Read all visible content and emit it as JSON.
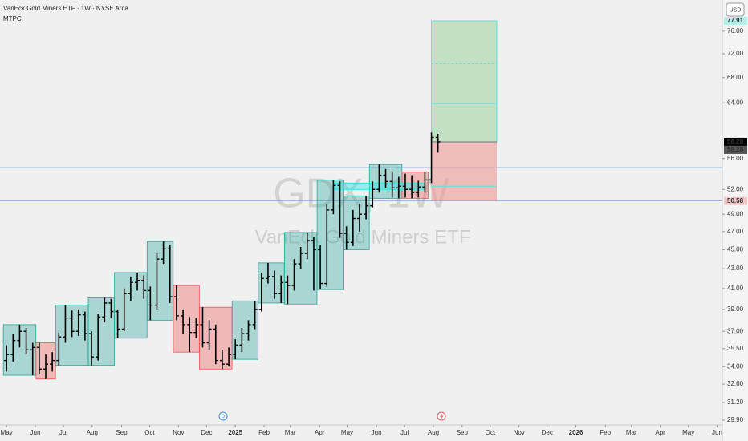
{
  "chart_data": {
    "type": "ohlc",
    "title": "VanEck Gold Miners ETF · 1W · NYSE Arca",
    "subtitle": "MTPC",
    "currency": "USD",
    "watermark": "GDX, 1W",
    "watermark_subtitle": "VanEck Gold Miners ETF",
    "log_scale": true,
    "bar_color": "#000000",
    "ylim": [
      29.56,
      81.9
    ],
    "yticks": [
      {
        "value": 76,
        "label": "76.00"
      },
      {
        "value": 72,
        "label": "72.00"
      },
      {
        "value": 68,
        "label": "68.00"
      },
      {
        "value": 64,
        "label": "64.00"
      },
      {
        "value": 56,
        "label": "56.00"
      },
      {
        "value": 52,
        "label": "52.00"
      },
      {
        "value": 49,
        "label": "49.00"
      },
      {
        "value": 47,
        "label": "47.00"
      },
      {
        "value": 45,
        "label": "45.00"
      },
      {
        "value": 43,
        "label": "43.00"
      },
      {
        "value": 41,
        "label": "41.00"
      },
      {
        "value": 39,
        "label": "39.00"
      },
      {
        "value": 37,
        "label": "37.00"
      },
      {
        "value": 35.5,
        "label": "35.50"
      },
      {
        "value": 34,
        "label": "34.00"
      },
      {
        "value": 32.6,
        "label": "32.60"
      },
      {
        "value": 31.2,
        "label": "31.20"
      },
      {
        "value": 29.9,
        "label": "29.90"
      }
    ],
    "price_labels": [
      {
        "value": 77.91,
        "label": "77.91",
        "bg": "#b2f0ea",
        "fg": "#222222"
      },
      {
        "value": 58.28,
        "label": "58.28",
        "bg": "#000000",
        "fg": "#ffffff"
      },
      {
        "value": 58.28,
        "label": "58.28",
        "bg": "#555555",
        "fg": "#ffffff"
      },
      {
        "value": 50.58,
        "label": "50.58",
        "bg": "#f4c7c7",
        "fg": "#222222"
      }
    ],
    "xlim": [
      -1,
      109.5
    ],
    "xticks": [
      {
        "value": 0,
        "label": "May"
      },
      {
        "value": 4.4,
        "label": "Jun"
      },
      {
        "value": 8.7,
        "label": "Jul"
      },
      {
        "value": 13.1,
        "label": "Aug"
      },
      {
        "value": 17.6,
        "label": "Sep"
      },
      {
        "value": 21.9,
        "label": "Oct"
      },
      {
        "value": 26.3,
        "label": "Nov"
      },
      {
        "value": 30.6,
        "label": "Dec"
      },
      {
        "value": 35,
        "label": "2025"
      },
      {
        "value": 39.4,
        "label": "Feb"
      },
      {
        "value": 43.4,
        "label": "Mar"
      },
      {
        "value": 47.9,
        "label": "Apr"
      },
      {
        "value": 52.1,
        "label": "May"
      },
      {
        "value": 56.6,
        "label": "Jun"
      },
      {
        "value": 60.9,
        "label": "Jul"
      },
      {
        "value": 65.3,
        "label": "Aug"
      },
      {
        "value": 69.7,
        "label": "Sep"
      },
      {
        "value": 74,
        "label": "Oct"
      },
      {
        "value": 78.4,
        "label": "Nov"
      },
      {
        "value": 82.7,
        "label": "Dec"
      },
      {
        "value": 87.1,
        "label": "2026"
      },
      {
        "value": 91.6,
        "label": "Feb"
      },
      {
        "value": 95.6,
        "label": "Mar"
      },
      {
        "value": 100,
        "label": "Apr"
      },
      {
        "value": 104.3,
        "label": "May"
      },
      {
        "value": 108.7,
        "label": "Jun"
      }
    ],
    "open": [
      34.5,
      35.0,
      36.2,
      37.0,
      35.4,
      35.6,
      33.8,
      34.2,
      34.5,
      36.5,
      38.2,
      37.0,
      38.5,
      36.8,
      34.8,
      38.3,
      39.6,
      38.8,
      37.2,
      40.5,
      41.6,
      41.8,
      40.8,
      39.4,
      44.0,
      45.1,
      40.2,
      38.4,
      37.6,
      36.9,
      37.6,
      36.0,
      37.2,
      34.5,
      34.2,
      35.0,
      35.8,
      36.8,
      37.6,
      39.0,
      42.0,
      42.2,
      40.5,
      41.6,
      41.3,
      43.5,
      44.6,
      46.0,
      45.0,
      41.5,
      49.5,
      52.5,
      46.8,
      45.8,
      48.5,
      49.0,
      50.0,
      52.0,
      53.8,
      53.0,
      52.2,
      52.4,
      52.0,
      51.6,
      52.3,
      53.2,
      58.9
    ],
    "high": [
      35.8,
      36.8,
      37.6,
      37.3,
      36.0,
      36.0,
      35.0,
      35.2,
      36.9,
      39.4,
      38.9,
      39.0,
      38.8,
      37.0,
      38.6,
      40.1,
      40.0,
      39.0,
      41.0,
      42.2,
      42.6,
      42.3,
      41.2,
      44.6,
      45.9,
      45.5,
      41.3,
      39.0,
      38.3,
      38.2,
      39.2,
      38.0,
      37.6,
      35.4,
      35.6,
      36.3,
      37.3,
      38.0,
      39.8,
      42.6,
      43.6,
      42.8,
      42.3,
      42.3,
      44.0,
      45.3,
      46.9,
      46.4,
      45.5,
      50.2,
      53.2,
      53.0,
      47.6,
      49.5,
      50.2,
      51.2,
      53.0,
      55.2,
      54.6,
      54.3,
      53.6,
      54.0,
      53.8,
      53.1,
      54.2,
      59.6,
      59.4
    ],
    "low": [
      33.6,
      34.4,
      35.6,
      35.0,
      33.3,
      33.4,
      33.0,
      33.6,
      34.1,
      36.0,
      36.5,
      36.6,
      36.2,
      34.1,
      34.5,
      37.8,
      38.2,
      36.4,
      37.0,
      39.8,
      40.8,
      40.0,
      38.0,
      39.0,
      43.5,
      39.6,
      38.0,
      36.8,
      35.2,
      36.4,
      35.6,
      35.4,
      34.2,
      33.8,
      34.0,
      34.6,
      35.2,
      36.2,
      37.2,
      38.8,
      41.5,
      40.0,
      39.6,
      39.5,
      40.8,
      43.0,
      44.0,
      40.8,
      40.9,
      41.2,
      49.0,
      46.3,
      45.0,
      45.4,
      47.0,
      48.4,
      49.8,
      51.6,
      52.2,
      51.0,
      50.9,
      51.0,
      50.9,
      51.0,
      51.6,
      52.8,
      56.8
    ],
    "close": [
      35.0,
      36.2,
      37.0,
      35.4,
      35.6,
      33.8,
      34.2,
      34.5,
      36.5,
      38.2,
      37.0,
      38.5,
      36.8,
      34.8,
      38.3,
      39.6,
      38.8,
      37.2,
      40.5,
      41.6,
      41.8,
      40.8,
      39.4,
      44.0,
      45.1,
      40.2,
      38.4,
      37.6,
      36.9,
      37.6,
      36.0,
      37.2,
      34.5,
      34.2,
      35.0,
      35.8,
      36.8,
      37.6,
      39.0,
      42.0,
      42.2,
      40.5,
      41.6,
      41.3,
      43.5,
      44.6,
      46.0,
      45.0,
      41.5,
      49.5,
      52.5,
      46.8,
      45.8,
      48.5,
      49.0,
      50.0,
      52.0,
      53.8,
      53.0,
      52.2,
      52.4,
      52.0,
      51.6,
      52.3,
      53.2,
      58.9,
      58.28
    ],
    "box_colors": {
      "up": "#26a69a",
      "down": "#ef5350"
    },
    "boxes": [
      {
        "start": 0,
        "end": 4,
        "low": 33.3,
        "high": 37.6,
        "kind": "up"
      },
      {
        "start": 5,
        "end": 7,
        "low": 33.0,
        "high": 36.0,
        "kind": "down"
      },
      {
        "start": 8,
        "end": 12,
        "low": 34.1,
        "high": 39.4,
        "kind": "up"
      },
      {
        "start": 13,
        "end": 16,
        "low": 34.1,
        "high": 40.1,
        "kind": "up"
      },
      {
        "start": 17,
        "end": 21,
        "low": 36.4,
        "high": 42.6,
        "kind": "up"
      },
      {
        "start": 22,
        "end": 25,
        "low": 38.0,
        "high": 45.9,
        "kind": "up"
      },
      {
        "start": 26,
        "end": 29,
        "low": 35.2,
        "high": 41.3,
        "kind": "down"
      },
      {
        "start": 30,
        "end": 34,
        "low": 33.8,
        "high": 39.2,
        "kind": "down"
      },
      {
        "start": 35,
        "end": 38,
        "low": 34.6,
        "high": 39.8,
        "kind": "up"
      },
      {
        "start": 39,
        "end": 42,
        "low": 39.6,
        "high": 43.6,
        "kind": "up"
      },
      {
        "start": 43,
        "end": 47,
        "low": 39.5,
        "high": 46.9,
        "kind": "up"
      },
      {
        "start": 48,
        "end": 51,
        "low": 40.9,
        "high": 53.2,
        "kind": "up"
      },
      {
        "start": 52,
        "end": 55,
        "low": 45.0,
        "high": 51.2,
        "kind": "up"
      },
      {
        "start": 56,
        "end": 60,
        "low": 50.9,
        "high": 55.2,
        "kind": "up"
      },
      {
        "start": 61,
        "end": 64,
        "low": 50.9,
        "high": 54.2,
        "kind": "down"
      }
    ],
    "hlines": [
      54.8,
      50.58
    ],
    "hline_color": "#7fa7dd",
    "zone": {
      "start": 50,
      "end": 64,
      "low": 52.0,
      "high": 52.8,
      "color": "#2ee6e6"
    },
    "position": {
      "start": 65,
      "end": 75,
      "entry": 58.28,
      "target": 77.91,
      "stop": 50.58,
      "target_lines": [
        70.3,
        63.9
      ],
      "stop_lines": [
        52.4
      ],
      "profit_color": "#a5d6a7",
      "loss_color": "#ef9a9a",
      "border_color": "#4ee8e0"
    }
  }
}
